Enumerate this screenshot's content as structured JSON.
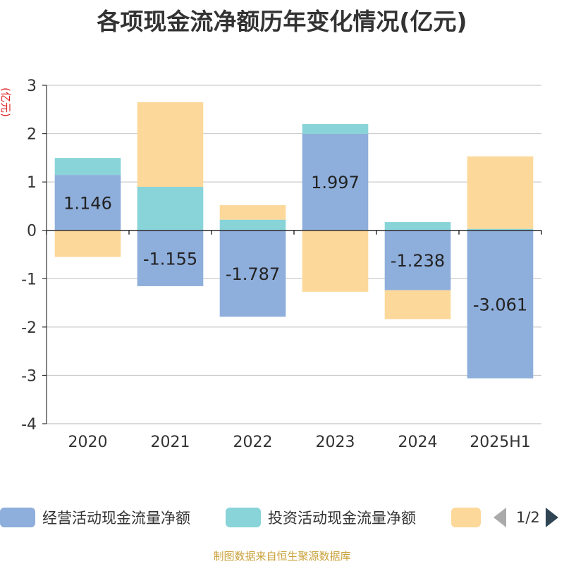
{
  "chart_data": {
    "type": "bar",
    "stacked": true,
    "title": "各项现金流净额历年变化情况(亿元)",
    "ylabel": "(亿元)",
    "categories": [
      "2020",
      "2021",
      "2022",
      "2023",
      "2024",
      "2025H1"
    ],
    "ylim": [
      -4,
      3
    ],
    "yticks": [
      -4,
      -3,
      -2,
      -1,
      0,
      1,
      2,
      3
    ],
    "grid": true,
    "legend_position": "bottom",
    "series": [
      {
        "name": "经营活动现金流量净额",
        "color": "#8eaedb",
        "values": [
          1.146,
          -1.155,
          -1.787,
          1.997,
          -1.238,
          -3.061
        ],
        "data_labels": [
          "1.146",
          "-1.155",
          "-1.787",
          "1.997",
          "-1.238",
          "-3.061"
        ]
      },
      {
        "name": "投资活动现金流量净额",
        "color": "#88d4d8",
        "values": [
          0.35,
          0.9,
          0.22,
          0.2,
          0.17,
          0.03
        ]
      },
      {
        "color": "#fdd89b",
        "values": [
          -0.55,
          1.75,
          0.3,
          -1.27,
          -0.6,
          1.5
        ]
      }
    ]
  },
  "legend": {
    "page_indicator": "1/2"
  },
  "source_note": "制图数据来自恒生聚源数据库"
}
